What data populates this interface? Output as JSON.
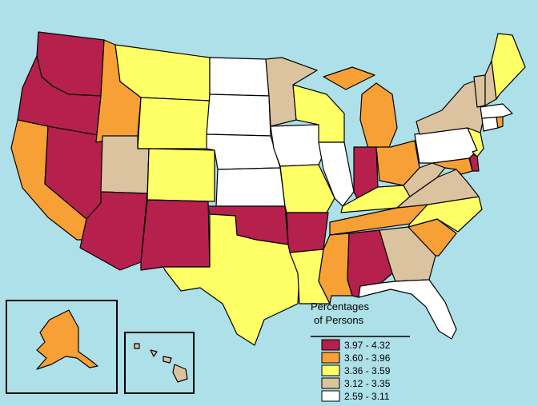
{
  "colors": {
    "ocean": "#ade0e8",
    "border": "#000000"
  },
  "legend": {
    "title_line1": "Percentages",
    "title_line2": "of Persons",
    "classes": [
      {
        "key": "c1",
        "label": "3.97 - 4.32",
        "color": "#b5204d"
      },
      {
        "key": "c2",
        "label": "3.60 - 3.96",
        "color": "#f7a035"
      },
      {
        "key": "c3",
        "label": "3.36 - 3.59",
        "color": "#ffff66"
      },
      {
        "key": "c4",
        "label": "3.12 - 3.35",
        "color": "#dcc39f"
      },
      {
        "key": "c5",
        "label": "2.59 - 3.11",
        "color": "#ffffff"
      }
    ]
  },
  "states": {
    "WA": "c1",
    "OR": "c1",
    "CA": "c2",
    "NV": "c1",
    "ID": "c2",
    "MT": "c3",
    "WY": "c3",
    "UT": "c4",
    "AZ": "c1",
    "CO": "c3",
    "NM": "c1",
    "ND": "c5",
    "SD": "c5",
    "NE": "c5",
    "KS": "c5",
    "OK": "c1",
    "TX": "c3",
    "MN": "c4",
    "IA": "c5",
    "MO": "c3",
    "AR": "c1",
    "LA": "c3",
    "WI": "c3",
    "IL": "c5",
    "MI": "c2",
    "IN": "c1",
    "OH": "c2",
    "KY": "c3",
    "TN": "c2",
    "MS": "c2",
    "AL": "c1",
    "GA": "c4",
    "FL": "c5",
    "SC": "c2",
    "NC": "c3",
    "VA": "c4",
    "WV": "c4",
    "MD": "c2",
    "DE": "c1",
    "PA": "c5",
    "NJ": "c3",
    "NY": "c4",
    "CT": "c5",
    "RI": "c2",
    "MA": "c5",
    "VT": "c4",
    "NH": "c4",
    "ME": "c3",
    "AK": "c2",
    "HI": "c4"
  }
}
